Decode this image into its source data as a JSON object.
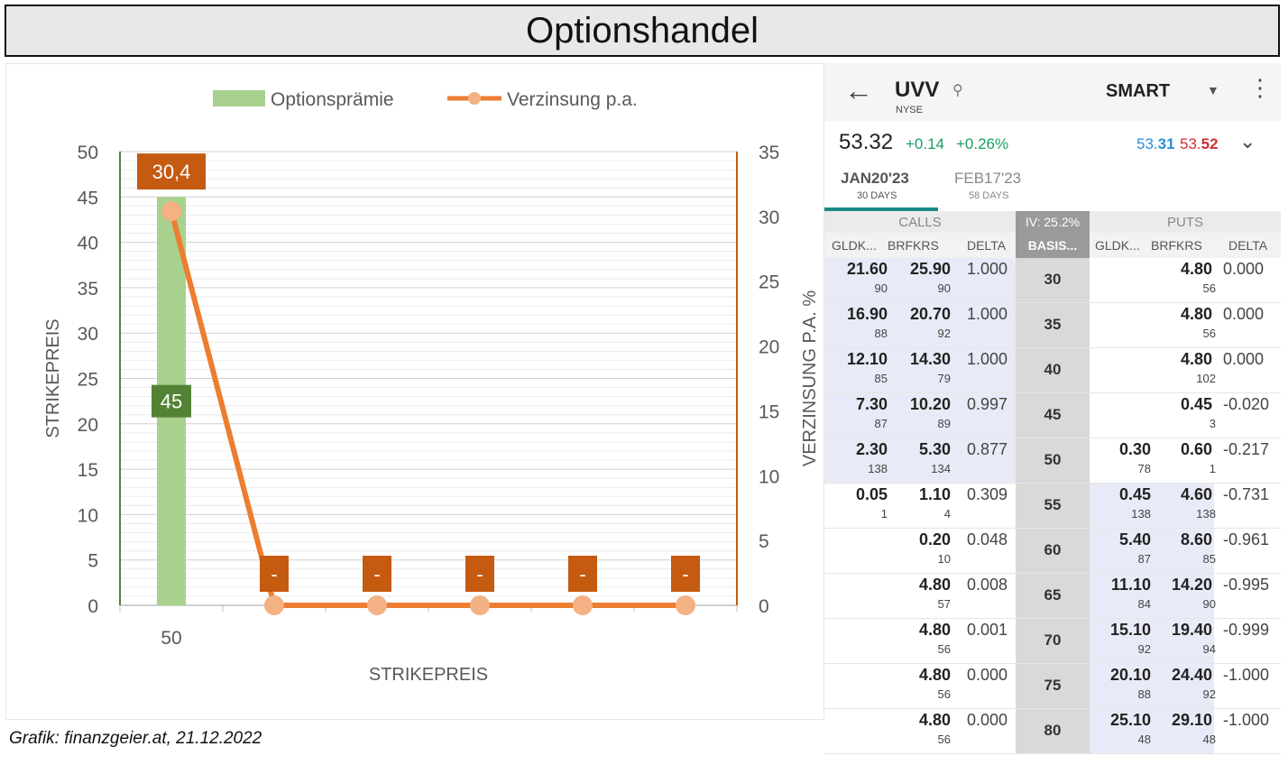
{
  "page_title": "Optionshandel",
  "caption": "Grafik: finanzgeier.at, 21.12.2022",
  "chart_data": {
    "type": "bar+line",
    "title": "",
    "legend_position": "top",
    "legend": [
      "Optionsprämie",
      "Verzinsung p.a."
    ],
    "xlabel": "STRIKEPREIS",
    "ylabel": "STRIKEPREIS",
    "ylabel_right": "VERZINSUNG P.A. %",
    "categories": [
      "50",
      "",
      "",
      "",
      "",
      ""
    ],
    "ylim": [
      0,
      50
    ],
    "y_ticks": [
      "0",
      "5",
      "10",
      "15",
      "20",
      "25",
      "30",
      "35",
      "40",
      "45",
      "50"
    ],
    "ylim_right": [
      0,
      35
    ],
    "y_ticks_right": [
      "0",
      "5",
      "10",
      "15",
      "20",
      "25",
      "30",
      "35"
    ],
    "series": [
      {
        "name": "Optionsprämie",
        "type": "bar",
        "axis": "left",
        "values": [
          45,
          0,
          0,
          0,
          0,
          0
        ],
        "labels": [
          "45",
          "",
          "",
          "",
          "",
          ""
        ],
        "color": "#a9d18e",
        "label_color": "#548235"
      },
      {
        "name": "Verzinsung p.a.",
        "type": "line",
        "axis": "right",
        "values": [
          30.4,
          0,
          0,
          0,
          0,
          0
        ],
        "labels": [
          "30,4",
          "-",
          "-",
          "-",
          "-",
          "-"
        ],
        "color": "#ed7d31",
        "marker_color": "#f4b183",
        "label_color": "#c55a11"
      }
    ],
    "grid": true,
    "axis_colors": {
      "left": "#548235",
      "right": "#c55a11"
    }
  },
  "app": {
    "symbol": "UVV",
    "exchange": "NYSE",
    "routing": "SMART",
    "last": "53.32",
    "change": "+0.14",
    "change_pct": "+0.26%",
    "bid_prefix": "53.",
    "bid_bold": "31",
    "ask_prefix": "53.",
    "ask_bold": "52",
    "tabs": [
      {
        "label": "JAN20'23",
        "sub": "30 DAYS",
        "active": true
      },
      {
        "label": "FEB17'23",
        "sub": "58 DAYS",
        "active": false
      }
    ],
    "calls_label": "CALLS",
    "puts_label": "PUTS",
    "iv_label": "IV: 25.2%",
    "columns": {
      "bid": "GLDK...",
      "ask": "BRFKRS",
      "delta": "DELTA",
      "strike": "BASIS..."
    },
    "rows": [
      {
        "strike": "30",
        "c_bid": "21.60",
        "c_bid_sz": "90",
        "c_ask": "25.90",
        "c_ask_sz": "90",
        "c_delta": "1.000",
        "p_bid": "",
        "p_bid_sz": "",
        "p_ask": "4.80",
        "p_ask_sz": "56",
        "p_delta": "0.000"
      },
      {
        "strike": "35",
        "c_bid": "16.90",
        "c_bid_sz": "88",
        "c_ask": "20.70",
        "c_ask_sz": "92",
        "c_delta": "1.000",
        "p_bid": "",
        "p_bid_sz": "",
        "p_ask": "4.80",
        "p_ask_sz": "56",
        "p_delta": "0.000"
      },
      {
        "strike": "40",
        "c_bid": "12.10",
        "c_bid_sz": "85",
        "c_ask": "14.30",
        "c_ask_sz": "79",
        "c_delta": "1.000",
        "p_bid": "",
        "p_bid_sz": "",
        "p_ask": "4.80",
        "p_ask_sz": "102",
        "p_delta": "0.000"
      },
      {
        "strike": "45",
        "c_bid": "7.30",
        "c_bid_sz": "87",
        "c_ask": "10.20",
        "c_ask_sz": "89",
        "c_delta": "0.997",
        "p_bid": "",
        "p_bid_sz": "",
        "p_ask": "0.45",
        "p_ask_sz": "3",
        "p_delta": "-0.020"
      },
      {
        "strike": "50",
        "c_bid": "2.30",
        "c_bid_sz": "138",
        "c_ask": "5.30",
        "c_ask_sz": "134",
        "c_delta": "0.877",
        "p_bid": "0.30",
        "p_bid_sz": "78",
        "p_ask": "0.60",
        "p_ask_sz": "1",
        "p_delta": "-0.217"
      },
      {
        "strike": "55",
        "c_bid": "0.05",
        "c_bid_sz": "1",
        "c_ask": "1.10",
        "c_ask_sz": "4",
        "c_delta": "0.309",
        "p_bid": "0.45",
        "p_bid_sz": "138",
        "p_ask": "4.60",
        "p_ask_sz": "138",
        "p_delta": "-0.731"
      },
      {
        "strike": "60",
        "c_bid": "",
        "c_bid_sz": "",
        "c_ask": "0.20",
        "c_ask_sz": "10",
        "c_delta": "0.048",
        "p_bid": "5.40",
        "p_bid_sz": "87",
        "p_ask": "8.60",
        "p_ask_sz": "85",
        "p_delta": "-0.961"
      },
      {
        "strike": "65",
        "c_bid": "",
        "c_bid_sz": "",
        "c_ask": "4.80",
        "c_ask_sz": "57",
        "c_delta": "0.008",
        "p_bid": "11.10",
        "p_bid_sz": "84",
        "p_ask": "14.20",
        "p_ask_sz": "90",
        "p_delta": "-0.995"
      },
      {
        "strike": "70",
        "c_bid": "",
        "c_bid_sz": "",
        "c_ask": "4.80",
        "c_ask_sz": "56",
        "c_delta": "0.001",
        "p_bid": "15.10",
        "p_bid_sz": "92",
        "p_ask": "19.40",
        "p_ask_sz": "94",
        "p_delta": "-0.999"
      },
      {
        "strike": "75",
        "c_bid": "",
        "c_bid_sz": "",
        "c_ask": "4.80",
        "c_ask_sz": "56",
        "c_delta": "0.000",
        "p_bid": "20.10",
        "p_bid_sz": "88",
        "p_ask": "24.40",
        "p_ask_sz": "92",
        "p_delta": "-1.000"
      },
      {
        "strike": "80",
        "c_bid": "",
        "c_bid_sz": "",
        "c_ask": "4.80",
        "c_ask_sz": "56",
        "c_delta": "0.000",
        "p_bid": "25.10",
        "p_bid_sz": "48",
        "p_ask": "29.10",
        "p_ask_sz": "48",
        "p_delta": "-1.000"
      }
    ],
    "icons": {
      "back": "arrow-left-icon",
      "search": "search-icon",
      "dropdown": "caret-down-icon",
      "more": "more-vert-icon",
      "expand": "chevron-down-icon"
    }
  }
}
